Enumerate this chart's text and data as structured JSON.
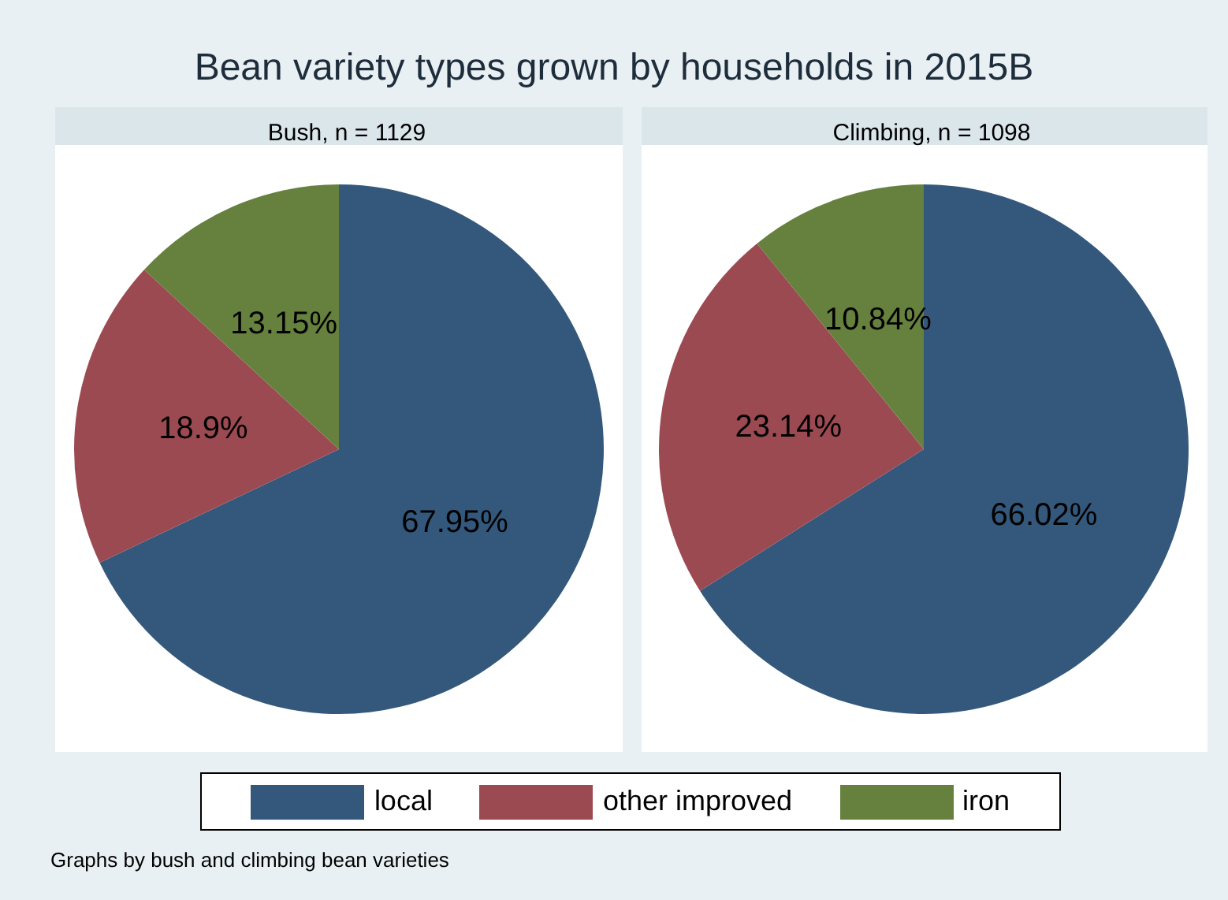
{
  "chart_data": [
    {
      "type": "pie",
      "title": "Bean variety types grown by households in 2015B",
      "subtitle": "Bush, n = 1129",
      "categories": [
        "local",
        "other improved",
        "iron"
      ],
      "values": [
        67.95,
        18.9,
        13.15
      ],
      "colors": [
        "#34587c",
        "#9c4a52",
        "#66803e"
      ],
      "value_labels": [
        "67.95%",
        "18.9%",
        "13.15%"
      ],
      "legend": "bottom",
      "annotations": [
        "Graphs by bush and climbing bean varieties"
      ]
    },
    {
      "type": "pie",
      "subtitle": "Climbing, n = 1098",
      "categories": [
        null,
        null,
        null
      ],
      "values": [
        66.02,
        23.14,
        10.84
      ],
      "colors": [
        "#34587c",
        "#9c4a52",
        "#66803e"
      ],
      "value_labels": [
        "66.02%",
        "23.14%",
        "10.84%"
      ]
    }
  ]
}
